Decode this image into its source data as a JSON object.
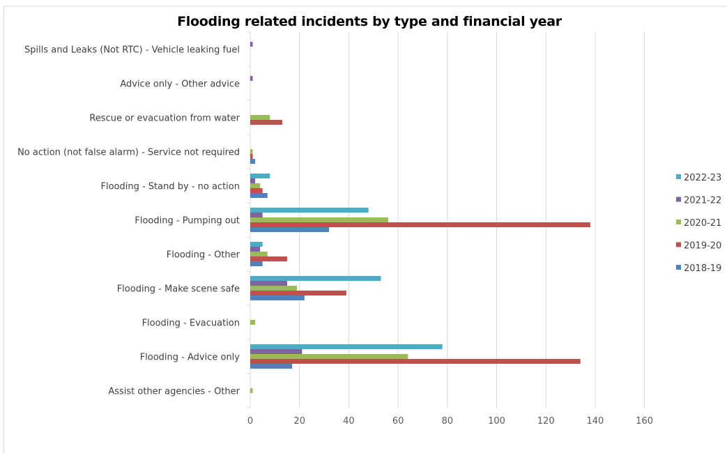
{
  "chart_data": {
    "type": "bar",
    "orientation": "horizontal",
    "title": "Flooding related incidents by type and financial year",
    "categories": [
      "Spills and Leaks (Not RTC) - Vehicle leaking fuel",
      "Advice only - Other advice",
      "Rescue or evacuation from water",
      "No action (not false alarm) - Service not required",
      "Flooding - Stand by - no action",
      "Flooding - Pumping out",
      "Flooding - Other",
      "Flooding - Make scene safe",
      "Flooding - Evacuation",
      "Flooding - Advice only",
      "Assist other agencies - Other"
    ],
    "series": [
      {
        "name": "2022-23",
        "color": "#4BACC6",
        "values": [
          0,
          0,
          0,
          0,
          8,
          48,
          5,
          53,
          0,
          78,
          0
        ]
      },
      {
        "name": "2021-22",
        "color": "#8064A2",
        "values": [
          1,
          1,
          0,
          0,
          2,
          5,
          4,
          15,
          0,
          21,
          0
        ]
      },
      {
        "name": "2020-21",
        "color": "#9BBB59",
        "values": [
          0,
          0,
          8,
          1,
          4,
          56,
          7,
          19,
          2,
          64,
          1
        ]
      },
      {
        "name": "2019-20",
        "color": "#C0504D",
        "values": [
          0,
          0,
          13,
          1,
          5,
          138,
          15,
          39,
          0,
          134,
          0
        ]
      },
      {
        "name": "2018-19",
        "color": "#4F81BD",
        "values": [
          0,
          0,
          0,
          2,
          7,
          32,
          5,
          22,
          0,
          17,
          0
        ]
      }
    ],
    "x_ticks": [
      "0",
      "20",
      "40",
      "60",
      "80",
      "100",
      "120",
      "140",
      "160"
    ],
    "xlim": [
      0,
      160
    ],
    "xlabel": "",
    "ylabel": "",
    "legend_position": "right",
    "grid": true
  }
}
